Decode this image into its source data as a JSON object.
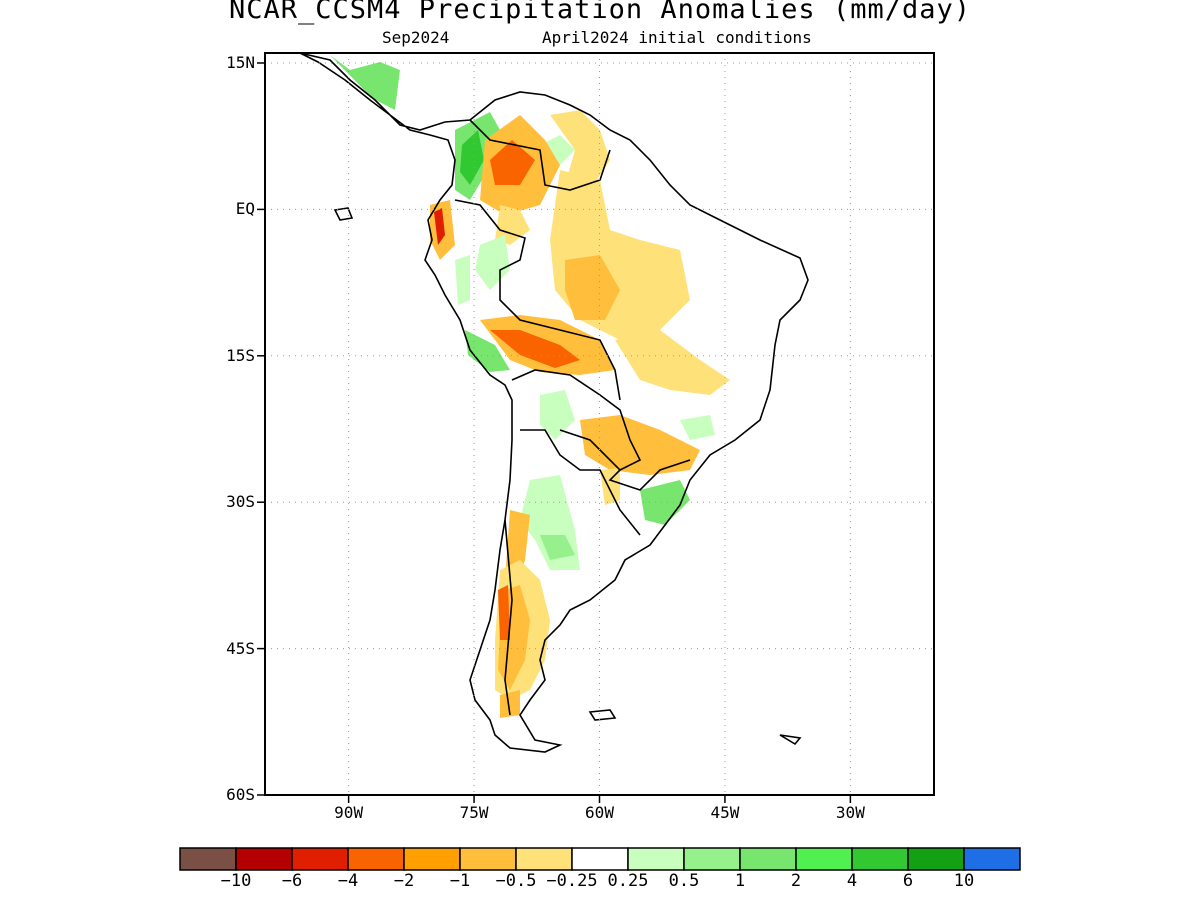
{
  "title": "NCAR_CCSM4 Precipitation Anomalies (mm/day)",
  "subtitle_left": "Sep2024",
  "subtitle_right": "April2024 initial conditions",
  "map": {
    "projection": "lat-lon",
    "lon_range": [
      -100,
      -20
    ],
    "lat_range": [
      -60,
      15
    ],
    "lat_ticks": [
      "15N",
      "EQ",
      "15S",
      "30S",
      "45S",
      "60S"
    ],
    "lon_ticks": [
      "90W",
      "75W",
      "60W",
      "45W",
      "30W"
    ],
    "grid": "dotted"
  },
  "colorbar": {
    "colors": [
      "#7a4f45",
      "#b40000",
      "#e01e00",
      "#fa6400",
      "#ffa000",
      "#ffbe3c",
      "#ffe17a",
      "#ffffff",
      "#c8ffbe",
      "#96f08c",
      "#78e66e",
      "#50f050",
      "#32c832",
      "#14a014",
      "#1e6ee6"
    ],
    "labels": [
      "−10",
      "−6",
      "−4",
      "−2",
      "−1",
      "−0.5",
      "−0.25",
      "0.25",
      "0.5",
      "1",
      "2",
      "4",
      "6",
      "10"
    ]
  }
}
